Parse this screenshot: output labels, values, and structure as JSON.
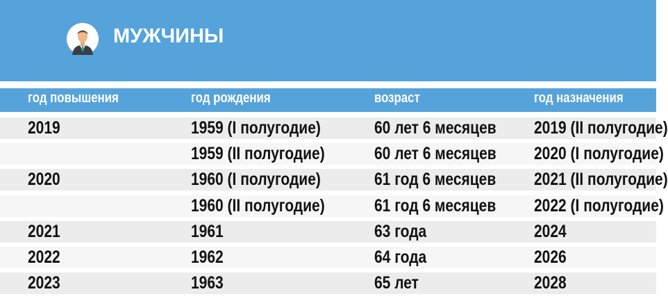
{
  "banner": {
    "title": "МУЖЧИНЫ",
    "icon": "man-avatar-icon",
    "color": "#55a3da"
  },
  "table": {
    "headers": [
      "год повышения",
      "год рождения",
      "возраст",
      "год назначения"
    ],
    "rows": [
      [
        "2019",
        "1959 (I полугодие)",
        "60 лет 6 месяцев",
        "2019 (II полугодие)"
      ],
      [
        "",
        "1959 (II полугодие)",
        "60 лет 6 месяцев",
        "2020 (I полугодие)"
      ],
      [
        "2020",
        "1960 (I полугодие)",
        "61 год 6 месяцев",
        "2021 (II полугодие)"
      ],
      [
        "",
        "1960 (II полугодие)",
        "61 год 6 месяцев",
        "2022 (I полугодие)"
      ],
      [
        "2021",
        "1961",
        "63 года",
        "2024"
      ],
      [
        "2022",
        "1962",
        "64 года",
        "2026"
      ],
      [
        "2023",
        "1963",
        "65 лет",
        "2028"
      ]
    ]
  }
}
